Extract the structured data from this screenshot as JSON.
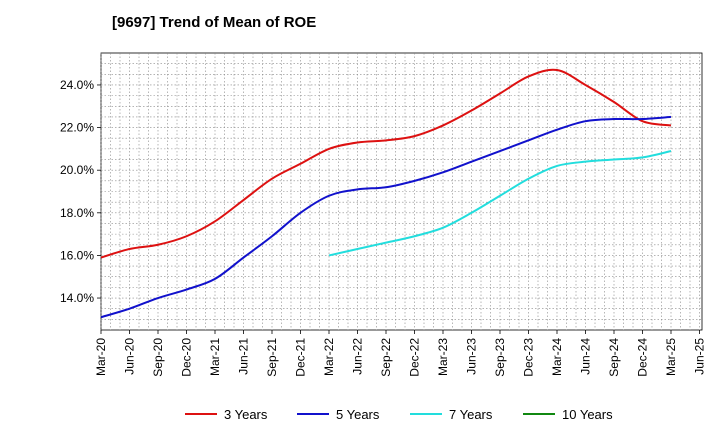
{
  "title": "[9697]  Trend of Mean of ROE",
  "chart_data": {
    "type": "line",
    "title": "[9697]  Trend of Mean of ROE",
    "xlabel": "",
    "ylabel": "",
    "x": [
      "Mar-20",
      "Jun-20",
      "Sep-20",
      "Dec-20",
      "Mar-21",
      "Jun-21",
      "Sep-21",
      "Dec-21",
      "Mar-22",
      "Jun-22",
      "Sep-22",
      "Dec-22",
      "Mar-23",
      "Jun-23",
      "Sep-23",
      "Dec-23",
      "Mar-24",
      "Jun-24",
      "Sep-24",
      "Dec-24",
      "Mar-25"
    ],
    "x_tick_labels": [
      "Mar-20",
      "Jun-20",
      "Sep-20",
      "Dec-20",
      "Mar-21",
      "Jun-21",
      "Sep-21",
      "Dec-21",
      "Mar-22",
      "Jun-22",
      "Sep-22",
      "Dec-22",
      "Mar-23",
      "Jun-23",
      "Sep-23",
      "Dec-23",
      "Mar-24",
      "Jun-24",
      "Sep-24",
      "Dec-24",
      "Mar-25",
      "Jun-25"
    ],
    "y_tick_labels": [
      "14.0%",
      "16.0%",
      "18.0%",
      "20.0%",
      "22.0%",
      "24.0%"
    ],
    "y_ticks": [
      14,
      16,
      18,
      20,
      22,
      24
    ],
    "ylim": [
      12.5,
      25.5
    ],
    "grid": true,
    "legend_position": "bottom",
    "series": [
      {
        "name": "3 Years",
        "color": "#dd1111",
        "values": [
          15.9,
          16.3,
          16.5,
          16.9,
          17.6,
          18.6,
          19.6,
          20.3,
          21.0,
          21.3,
          21.4,
          21.6,
          22.1,
          22.8,
          23.6,
          24.4,
          24.7,
          24.0,
          23.2,
          22.3,
          22.1
        ]
      },
      {
        "name": "5 Years",
        "color": "#1111cc",
        "values": [
          13.1,
          13.5,
          14.0,
          14.4,
          14.9,
          15.9,
          16.9,
          18.0,
          18.8,
          19.1,
          19.2,
          19.5,
          19.9,
          20.4,
          20.9,
          21.4,
          21.9,
          22.3,
          22.4,
          22.4,
          22.5
        ]
      },
      {
        "name": "7 Years",
        "color": "#22dddd",
        "values": [
          null,
          null,
          null,
          null,
          null,
          null,
          null,
          null,
          16.0,
          16.3,
          16.6,
          16.9,
          17.3,
          18.0,
          18.8,
          19.6,
          20.2,
          20.4,
          20.5,
          20.6,
          20.9
        ]
      },
      {
        "name": "10 Years",
        "color": "#118811",
        "values": [
          null,
          null,
          null,
          null,
          null,
          null,
          null,
          null,
          null,
          null,
          null,
          null,
          null,
          null,
          null,
          null,
          null,
          null,
          null,
          null,
          null
        ]
      }
    ]
  }
}
